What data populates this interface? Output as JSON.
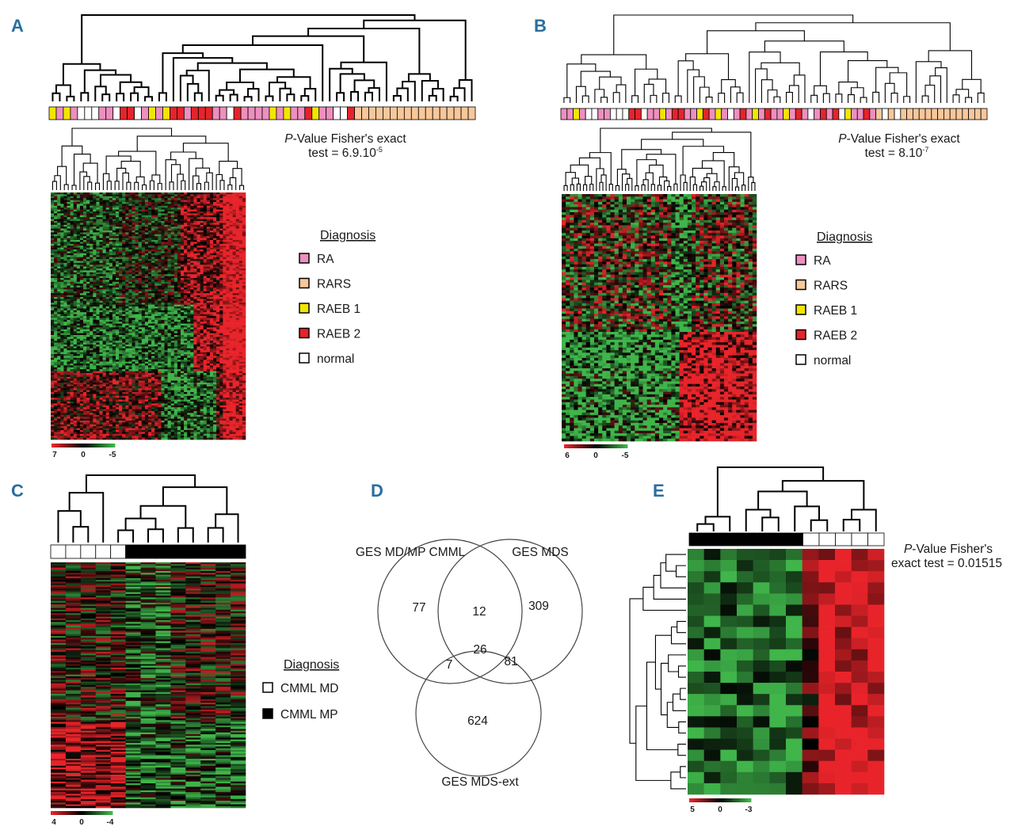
{
  "panels": {
    "A": {
      "letter": "A",
      "pvalue_line1": "P-Value Fisher's exact",
      "pvalue_line2": "test = 6.9.10",
      "pvalue_exp": "-5",
      "legend_title": "Diagnosis",
      "legend": [
        {
          "label": "RA",
          "color": "#ee8fbf"
        },
        {
          "label": "RARS",
          "color": "#f8c79a"
        },
        {
          "label": "RAEB 1",
          "color": "#f2e600"
        },
        {
          "label": "RAEB 2",
          "color": "#e5242a"
        },
        {
          "label": "normal",
          "color": "#ffffff"
        }
      ],
      "scale": [
        "7",
        "0",
        "-5"
      ],
      "sample_bar": [
        "Y",
        "P",
        "Y",
        "P",
        "W",
        "W",
        "W",
        "P",
        "P",
        "W",
        "R",
        "R",
        "W",
        "P",
        "Y",
        "P",
        "Y",
        "R",
        "R",
        "P",
        "R",
        "R",
        "R",
        "P",
        "P",
        "W",
        "R",
        "P",
        "P",
        "P",
        "P",
        "Y",
        "P",
        "Y",
        "P",
        "P",
        "R",
        "Y",
        "P",
        "P",
        "W",
        "W",
        "R",
        "O",
        "O",
        "O",
        "O",
        "O",
        "O",
        "O",
        "O",
        "O",
        "O",
        "O",
        "O",
        "O",
        "O",
        "O",
        "O",
        "O"
      ]
    },
    "B": {
      "letter": "B",
      "pvalue_line1": "P-Value Fisher's exact",
      "pvalue_line2": "test = 8.10",
      "pvalue_exp": "-7",
      "legend_title": "Diagnosis",
      "legend": [
        {
          "label": "RA",
          "color": "#ee8fbf"
        },
        {
          "label": "RARS",
          "color": "#f8c79a"
        },
        {
          "label": "RAEB 1",
          "color": "#f2e600"
        },
        {
          "label": "RAEB 2",
          "color": "#e5242a"
        },
        {
          "label": "normal",
          "color": "#ffffff"
        }
      ],
      "scale": [
        "6",
        "0",
        "-5"
      ],
      "sample_bar": [
        "P",
        "P",
        "Y",
        "P",
        "W",
        "W",
        "P",
        "P",
        "W",
        "W",
        "W",
        "R",
        "R",
        "W",
        "P",
        "P",
        "Y",
        "P",
        "R",
        "R",
        "P",
        "P",
        "Y",
        "R",
        "P",
        "Y",
        "P",
        "W",
        "P",
        "R",
        "P",
        "Y",
        "P",
        "R",
        "P",
        "P",
        "Y",
        "P",
        "R",
        "P",
        "W",
        "P",
        "R",
        "P",
        "R",
        "W",
        "Y",
        "P",
        "P",
        "R",
        "P",
        "O",
        "W",
        "O",
        "W",
        "O",
        "O",
        "O",
        "O",
        "O",
        "O",
        "O",
        "O",
        "O",
        "O",
        "O",
        "O",
        "O",
        "O"
      ]
    },
    "C": {
      "letter": "C",
      "legend_title": "Diagnosis",
      "legend": [
        {
          "label": "CMML MD",
          "color": "#ffffff"
        },
        {
          "label": "CMML MP",
          "color": "#000000"
        }
      ],
      "scale": [
        "4",
        "0",
        "-4"
      ],
      "sample_bar": [
        "W",
        "W",
        "W",
        "W",
        "W",
        "K",
        "K",
        "K",
        "K",
        "K",
        "K",
        "K",
        "K"
      ]
    },
    "D": {
      "letter": "D",
      "sets": [
        {
          "name": "GES MD/MP CMML"
        },
        {
          "name": "GES MDS"
        },
        {
          "name": "GES MDS-ext"
        }
      ],
      "regions": {
        "only_cmml": "77",
        "only_mds": "309",
        "only_mdsext": "624",
        "cmml_mds": "12",
        "cmml_mdsext": "7",
        "mds_mdsext": "81",
        "all_three": "26"
      }
    },
    "E": {
      "letter": "E",
      "pvalue_line1": "P-Value Fisher's",
      "pvalue_line2": "exact test = 0.01515",
      "scale": [
        "5",
        "0",
        "-3"
      ],
      "sample_bar": [
        "K",
        "K",
        "K",
        "K",
        "K",
        "K",
        "K",
        "W",
        "W",
        "W",
        "W",
        "W"
      ]
    }
  },
  "colors": {
    "heat_red": "#e8242a",
    "heat_green": "#3fb54a",
    "heat_black": "#000000",
    "letter_blue": "#2a6e9e"
  }
}
